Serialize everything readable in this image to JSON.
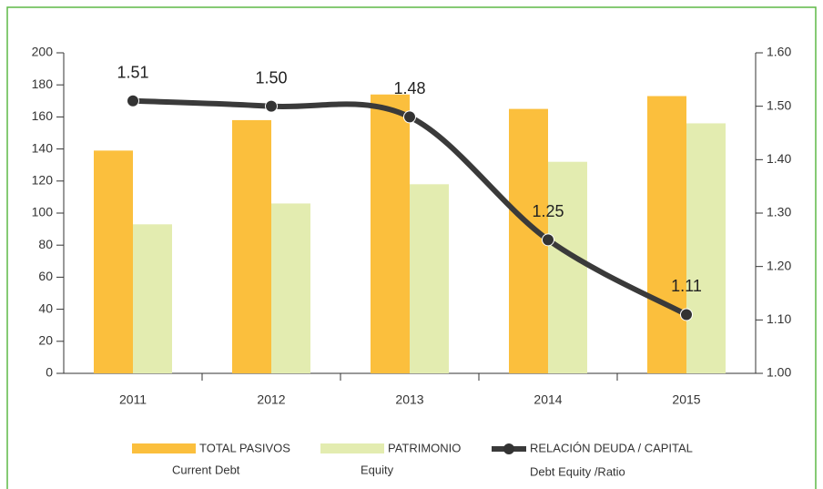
{
  "chart_data": {
    "type": "bar-line",
    "categories": [
      "2011",
      "2012",
      "2013",
      "2014",
      "2015"
    ],
    "series": [
      {
        "name": "TOTAL PASIVOS",
        "sublabel": "Current Debt",
        "type": "bar",
        "color": "#fbbf3d",
        "values": [
          139,
          158,
          174,
          165,
          173
        ]
      },
      {
        "name": "PATRIMONIO",
        "sublabel": "Equity",
        "type": "bar",
        "color": "#e3ecb0",
        "values": [
          93,
          106,
          118,
          132,
          156
        ]
      },
      {
        "name": "RELACIÓN DEUDA / CAPITAL",
        "sublabel": "Debt Equity /Ratio",
        "type": "line",
        "axis": "y2",
        "color": "#3a3a3a",
        "values": [
          1.51,
          1.5,
          1.48,
          1.25,
          1.11
        ],
        "value_labels": [
          "1.51",
          "1.50",
          "1.48",
          "1.25",
          "1.11"
        ]
      }
    ],
    "ylim": [
      0,
      200
    ],
    "yticks": [
      0,
      20,
      40,
      60,
      80,
      100,
      120,
      140,
      160,
      180,
      200
    ],
    "y2lim": [
      1.0,
      1.6
    ],
    "y2ticks": [
      {
        "value": 1.0,
        "label": "1.00"
      },
      {
        "value": 1.1,
        "label": "1.10"
      },
      {
        "value": 1.2,
        "label": "1.20"
      },
      {
        "value": 1.3,
        "label": "1.30"
      },
      {
        "value": 1.4,
        "label": "1.40"
      },
      {
        "value": 1.5,
        "label": "1.50"
      },
      {
        "value": 1.6,
        "label": "1.60"
      }
    ],
    "legend": "bottom"
  }
}
